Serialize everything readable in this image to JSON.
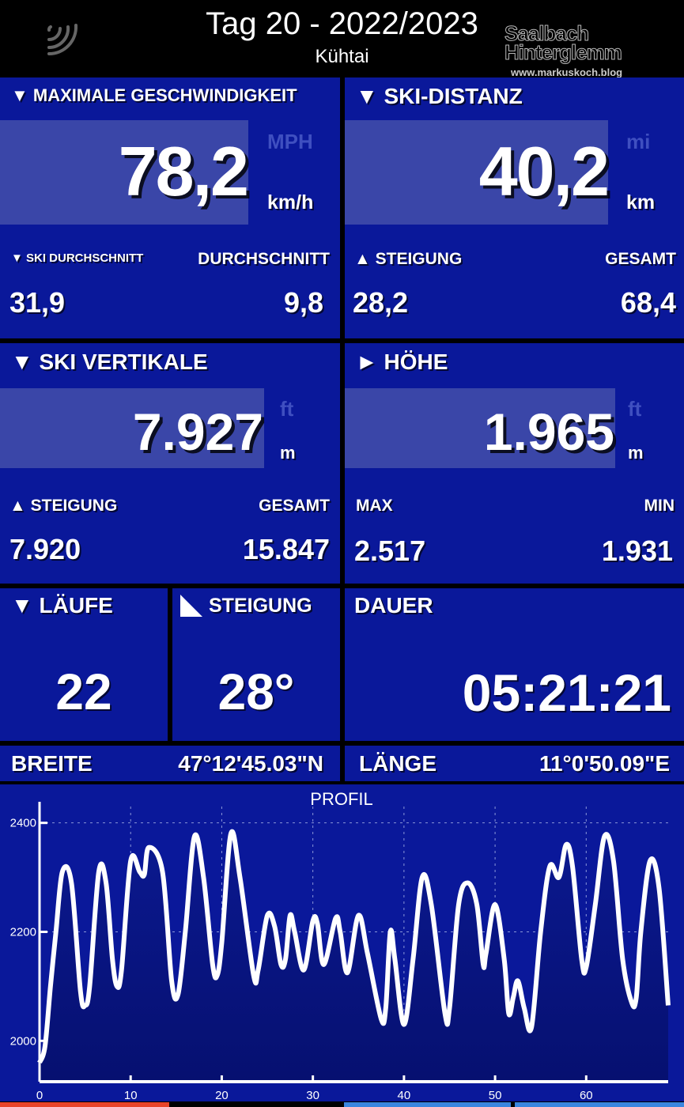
{
  "header": {
    "title": "Tag 20 - 2022/2023",
    "subtitle": "Kühtai",
    "left_icon": "signal-waves-icon",
    "logo_text": "Saalbach Hinterglemm 23",
    "logo_url": "www.markuskoch.blog"
  },
  "speed": {
    "title": "▼ MAXIMALE GESCHWINDIGKEIT",
    "value": "78,2",
    "alt_unit": "MPH",
    "unit": "km/h",
    "sub_left_label": "▼ SKI DURCHSCHNITT",
    "sub_right_label": "DURCHSCHNITT",
    "sub_left_value": "31,9",
    "sub_right_value": "9,8"
  },
  "distance": {
    "title": "▼ SKI-DISTANZ",
    "value": "40,2",
    "alt_unit": "mi",
    "unit": "km",
    "sub_left_label": "▲ STEIGUNG",
    "sub_right_label": "GESAMT",
    "sub_left_value": "28,2",
    "sub_right_value": "68,4"
  },
  "vertical": {
    "title": "▼ SKI VERTIKALE",
    "value": "7.927",
    "alt_unit": "ft",
    "unit": "m",
    "sub_left_label": "▲ STEIGUNG",
    "sub_right_label": "GESAMT",
    "sub_left_value": "7.920",
    "sub_right_value": "15.847"
  },
  "altitude": {
    "title": "► HÖHE",
    "value": "1.965",
    "alt_unit": "ft",
    "unit": "m",
    "sub_left_label": "MAX",
    "sub_right_label": "MIN",
    "sub_left_value": "2.517",
    "sub_right_value": "1.931"
  },
  "runs": {
    "title": "▼ LÄUFE",
    "value": "22"
  },
  "slope": {
    "title": "STEIGUNG",
    "value": "28°",
    "icon": "slope-triangle-icon"
  },
  "duration": {
    "title": "DAUER",
    "value": "05:21:21"
  },
  "latitude": {
    "label": "BREITE",
    "value": "47°12'45.03\"N"
  },
  "longitude": {
    "label": "LÄNGE",
    "value": "11°0'50.09\"E"
  },
  "colors": {
    "panel": "#0a189a",
    "highlight": "#3a46a8",
    "tab_red": "#e8442a",
    "tab_blue": "#3a86e0"
  },
  "chart_data": {
    "type": "area",
    "title": "PROFIL",
    "xlabel": "",
    "ylabel": "",
    "xlim": [
      0,
      69
    ],
    "ylim": [
      1925,
      2430
    ],
    "xticks": [
      0,
      10,
      20,
      30,
      40,
      50,
      60
    ],
    "yticks": [
      2000,
      2200,
      2400
    ],
    "grid": true,
    "x": [
      0,
      0.6,
      1.2,
      1.8,
      2.5,
      3.5,
      4.5,
      5,
      5.5,
      6.5,
      7.3,
      8,
      8.5,
      9,
      10,
      11,
      11.5,
      12,
      13.5,
      14.5,
      15.2,
      16,
      17,
      18,
      19,
      19.5,
      20,
      21,
      22,
      23.5,
      24,
      25,
      25.8,
      26.5,
      27,
      27.5,
      28,
      29,
      30,
      30.5,
      31.2,
      32.5,
      33,
      33.8,
      35,
      36,
      37.5,
      38,
      38.5,
      39,
      40,
      41,
      42,
      43,
      44.5,
      45,
      46,
      47,
      48,
      48.7,
      49,
      50,
      51,
      51.5,
      52,
      52.5,
      53.2,
      54,
      55,
      56,
      57,
      57.8,
      58.5,
      59.5,
      60,
      61,
      62,
      63,
      64,
      65,
      65.5,
      66,
      67,
      68,
      69
    ],
    "y": [
      1960,
      1990,
      2100,
      2200,
      2310,
      2290,
      2090,
      2065,
      2100,
      2310,
      2290,
      2150,
      2100,
      2130,
      2330,
      2310,
      2305,
      2355,
      2310,
      2110,
      2085,
      2200,
      2375,
      2300,
      2140,
      2120,
      2180,
      2380,
      2300,
      2120,
      2130,
      2230,
      2210,
      2140,
      2150,
      2230,
      2200,
      2130,
      2220,
      2215,
      2140,
      2225,
      2200,
      2125,
      2230,
      2160,
      2040,
      2060,
      2200,
      2150,
      2030,
      2150,
      2300,
      2250,
      2050,
      2060,
      2250,
      2290,
      2250,
      2140,
      2160,
      2250,
      2150,
      2050,
      2080,
      2110,
      2060,
      2025,
      2200,
      2320,
      2300,
      2360,
      2320,
      2150,
      2135,
      2250,
      2375,
      2330,
      2150,
      2070,
      2080,
      2200,
      2330,
      2280,
      2065
    ]
  }
}
